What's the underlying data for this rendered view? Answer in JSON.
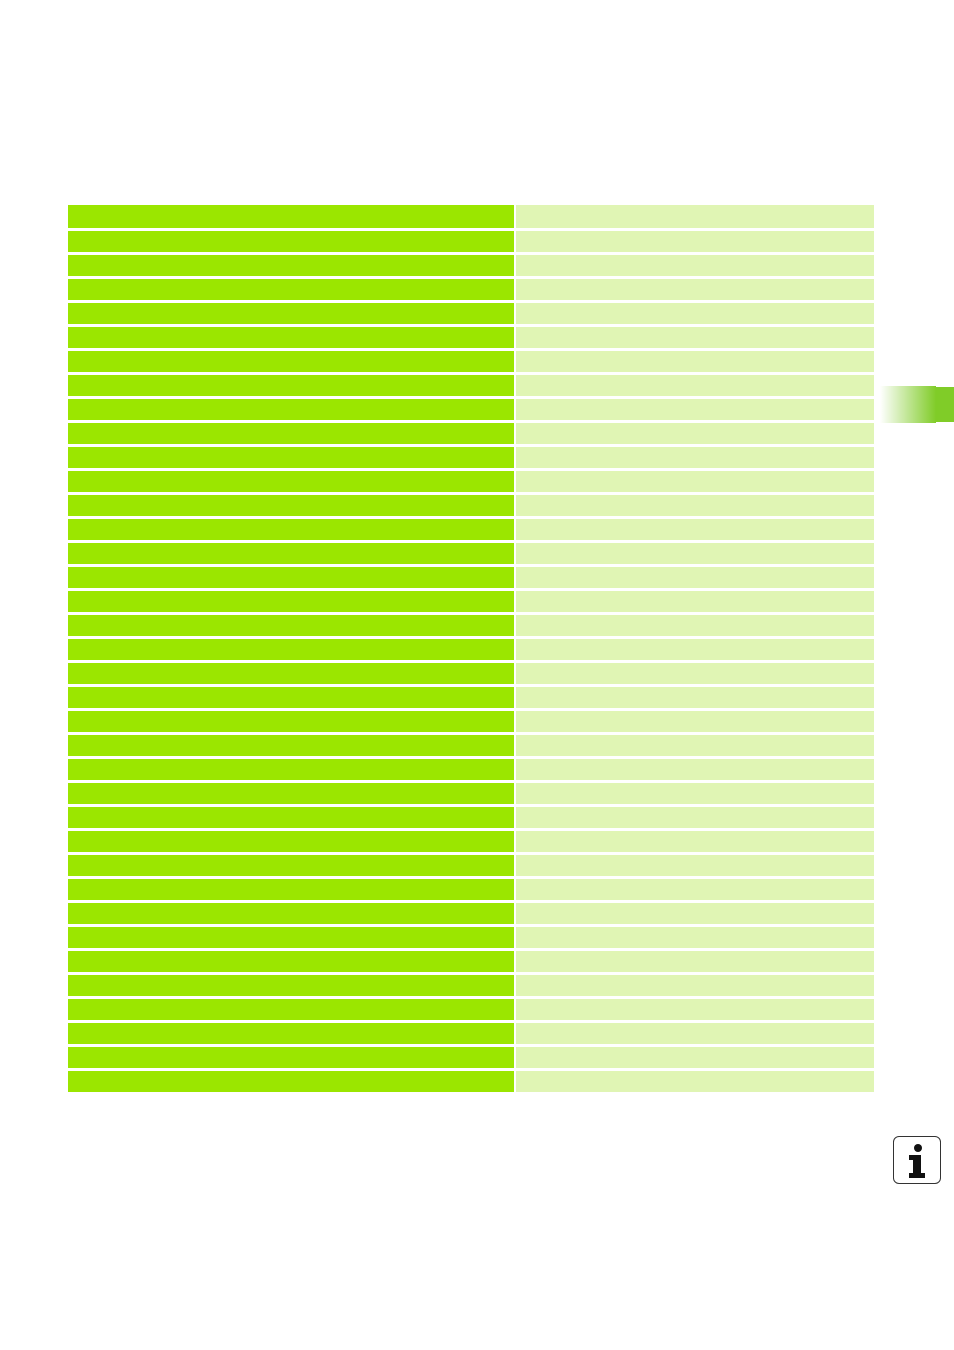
{
  "colors": {
    "key_column": "#9be600",
    "value_column": "#e0f5b4",
    "chapter_tab": "#80cc28"
  },
  "icons": {
    "info": "info-icon"
  },
  "table": {
    "rows": [
      {
        "key": "",
        "value": ""
      },
      {
        "key": "",
        "value": ""
      },
      {
        "key": "",
        "value": ""
      },
      {
        "key": "",
        "value": ""
      },
      {
        "key": "",
        "value": ""
      },
      {
        "key": "",
        "value": ""
      },
      {
        "key": "",
        "value": ""
      },
      {
        "key": "",
        "value": ""
      },
      {
        "key": "",
        "value": ""
      },
      {
        "key": "",
        "value": ""
      },
      {
        "key": "",
        "value": ""
      },
      {
        "key": "",
        "value": ""
      },
      {
        "key": "",
        "value": ""
      },
      {
        "key": "",
        "value": ""
      },
      {
        "key": "",
        "value": ""
      },
      {
        "key": "",
        "value": ""
      },
      {
        "key": "",
        "value": ""
      },
      {
        "key": "",
        "value": ""
      },
      {
        "key": "",
        "value": ""
      },
      {
        "key": "",
        "value": ""
      },
      {
        "key": "",
        "value": ""
      },
      {
        "key": "",
        "value": ""
      },
      {
        "key": "",
        "value": ""
      },
      {
        "key": "",
        "value": ""
      },
      {
        "key": "",
        "value": ""
      },
      {
        "key": "",
        "value": ""
      },
      {
        "key": "",
        "value": ""
      },
      {
        "key": "",
        "value": ""
      },
      {
        "key": "",
        "value": ""
      },
      {
        "key": "",
        "value": ""
      },
      {
        "key": "",
        "value": ""
      },
      {
        "key": "",
        "value": ""
      },
      {
        "key": "",
        "value": ""
      },
      {
        "key": "",
        "value": ""
      },
      {
        "key": "",
        "value": ""
      },
      {
        "key": "",
        "value": ""
      },
      {
        "key": "",
        "value": ""
      }
    ]
  }
}
